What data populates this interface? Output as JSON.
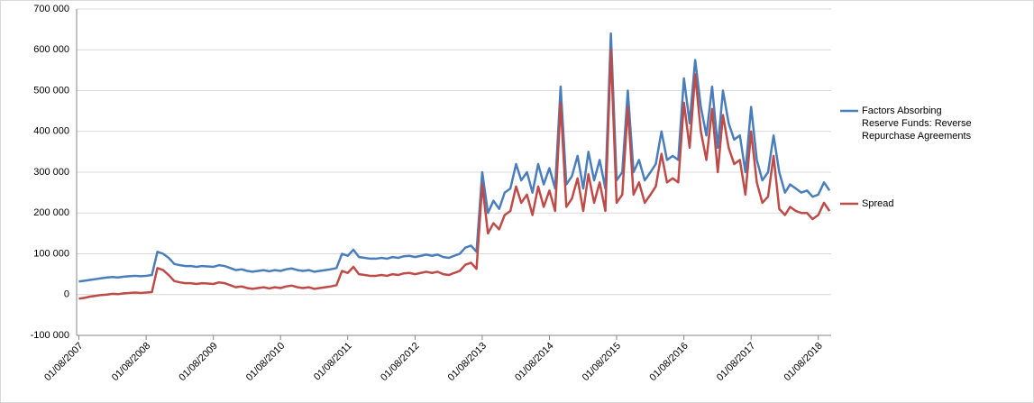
{
  "chart_data": {
    "type": "line",
    "x": [
      "2007-08-01",
      "2007-09-01",
      "2007-10-01",
      "2007-11-01",
      "2007-12-01",
      "2008-01-01",
      "2008-02-01",
      "2008-03-01",
      "2008-04-01",
      "2008-05-01",
      "2008-06-01",
      "2008-07-01",
      "2008-08-01",
      "2008-09-01",
      "2008-10-01",
      "2008-11-01",
      "2008-12-01",
      "2009-01-01",
      "2009-02-01",
      "2009-03-01",
      "2009-04-01",
      "2009-05-01",
      "2009-06-01",
      "2009-07-01",
      "2009-08-01",
      "2009-09-01",
      "2009-10-01",
      "2009-11-01",
      "2009-12-01",
      "2010-01-01",
      "2010-02-01",
      "2010-03-01",
      "2010-04-01",
      "2010-05-01",
      "2010-06-01",
      "2010-07-01",
      "2010-08-01",
      "2010-09-01",
      "2010-10-01",
      "2010-11-01",
      "2010-12-01",
      "2011-01-01",
      "2011-02-01",
      "2011-03-01",
      "2011-04-01",
      "2011-05-01",
      "2011-06-01",
      "2011-07-01",
      "2011-08-01",
      "2011-09-01",
      "2011-10-01",
      "2011-11-01",
      "2011-12-01",
      "2012-01-01",
      "2012-02-01",
      "2012-03-01",
      "2012-04-01",
      "2012-05-01",
      "2012-06-01",
      "2012-07-01",
      "2012-08-01",
      "2012-09-01",
      "2012-10-01",
      "2012-11-01",
      "2012-12-01",
      "2013-01-01",
      "2013-02-01",
      "2013-03-01",
      "2013-04-01",
      "2013-05-01",
      "2013-06-01",
      "2013-07-01",
      "2013-08-01",
      "2013-09-01",
      "2013-10-01",
      "2013-11-01",
      "2013-12-01",
      "2014-01-01",
      "2014-02-01",
      "2014-03-01",
      "2014-04-01",
      "2014-05-01",
      "2014-06-01",
      "2014-07-01",
      "2014-08-01",
      "2014-09-01",
      "2014-10-01",
      "2014-11-01",
      "2014-12-01",
      "2015-01-01",
      "2015-02-01",
      "2015-03-01",
      "2015-04-01",
      "2015-05-01",
      "2015-06-01",
      "2015-07-01",
      "2015-08-01",
      "2015-09-01",
      "2015-10-01",
      "2015-11-01",
      "2015-12-01",
      "2016-01-01",
      "2016-02-01",
      "2016-03-01",
      "2016-04-01",
      "2016-05-01",
      "2016-06-01",
      "2016-07-01",
      "2016-08-01",
      "2016-09-01",
      "2016-10-01",
      "2016-11-01",
      "2016-12-01",
      "2017-01-01",
      "2017-02-01",
      "2017-03-01",
      "2017-04-01",
      "2017-05-01",
      "2017-06-01",
      "2017-07-01",
      "2017-08-01",
      "2017-09-01",
      "2017-10-01",
      "2017-11-01",
      "2017-12-01",
      "2018-01-01",
      "2018-02-01",
      "2018-03-01",
      "2018-04-01",
      "2018-05-01",
      "2018-06-01",
      "2018-07-01",
      "2018-08-01",
      "2018-09-01",
      "2018-10-01"
    ],
    "series": [
      {
        "name": "Factors Absorbing Reserve Funds: Reverse Repurchase Agreements",
        "color": "#4a7ebb",
        "values": [
          32000,
          34000,
          36000,
          38000,
          40000,
          42000,
          43000,
          42000,
          44000,
          45000,
          46000,
          45000,
          46000,
          48000,
          105000,
          100000,
          90000,
          75000,
          72000,
          70000,
          70000,
          68000,
          70000,
          69000,
          68000,
          72000,
          70000,
          65000,
          60000,
          62000,
          58000,
          56000,
          58000,
          60000,
          57000,
          60000,
          58000,
          62000,
          64000,
          60000,
          58000,
          60000,
          56000,
          58000,
          60000,
          62000,
          65000,
          100000,
          95000,
          110000,
          92000,
          90000,
          88000,
          88000,
          90000,
          88000,
          92000,
          90000,
          94000,
          95000,
          92000,
          95000,
          98000,
          95000,
          98000,
          92000,
          90000,
          95000,
          100000,
          115000,
          120000,
          105000,
          300000,
          200000,
          230000,
          210000,
          250000,
          260000,
          320000,
          280000,
          300000,
          250000,
          320000,
          270000,
          310000,
          260000,
          510000,
          270000,
          290000,
          340000,
          260000,
          350000,
          280000,
          330000,
          260000,
          640000,
          280000,
          300000,
          500000,
          300000,
          330000,
          280000,
          300000,
          320000,
          400000,
          330000,
          340000,
          330000,
          530000,
          420000,
          575000,
          460000,
          390000,
          510000,
          360000,
          500000,
          420000,
          380000,
          390000,
          300000,
          460000,
          330000,
          280000,
          300000,
          390000,
          300000,
          250000,
          270000,
          260000,
          250000,
          255000,
          240000,
          245000,
          275000,
          255000
        ]
      },
      {
        "name": "Spread",
        "color": "#be4b48",
        "values": [
          -10000,
          -8000,
          -5000,
          -3000,
          -1000,
          0,
          2000,
          1000,
          3000,
          4000,
          5000,
          4000,
          5000,
          6000,
          65000,
          60000,
          48000,
          33000,
          30000,
          28000,
          28000,
          26000,
          28000,
          27000,
          26000,
          30000,
          28000,
          23000,
          18000,
          20000,
          16000,
          14000,
          16000,
          18000,
          15000,
          18000,
          16000,
          20000,
          22000,
          18000,
          16000,
          18000,
          14000,
          16000,
          18000,
          20000,
          23000,
          58000,
          53000,
          68000,
          50000,
          48000,
          46000,
          46000,
          48000,
          46000,
          50000,
          48000,
          52000,
          53000,
          50000,
          53000,
          56000,
          53000,
          56000,
          50000,
          48000,
          53000,
          58000,
          73000,
          78000,
          63000,
          270000,
          150000,
          175000,
          160000,
          195000,
          205000,
          265000,
          225000,
          245000,
          195000,
          265000,
          215000,
          255000,
          205000,
          470000,
          215000,
          235000,
          285000,
          205000,
          295000,
          225000,
          275000,
          205000,
          600000,
          225000,
          245000,
          460000,
          245000,
          275000,
          225000,
          245000,
          265000,
          345000,
          275000,
          285000,
          275000,
          470000,
          360000,
          540000,
          400000,
          330000,
          455000,
          300000,
          440000,
          360000,
          320000,
          330000,
          245000,
          400000,
          275000,
          225000,
          240000,
          340000,
          210000,
          195000,
          215000,
          205000,
          200000,
          200000,
          185000,
          195000,
          225000,
          205000
        ]
      }
    ],
    "xlim": [
      "2007-07-20",
      "2018-10-10"
    ],
    "xticks": [
      {
        "value": "2007-08-01",
        "label": "01/08/2007"
      },
      {
        "value": "2008-08-01",
        "label": "01/08/2008"
      },
      {
        "value": "2009-08-01",
        "label": "01/08/2009"
      },
      {
        "value": "2010-08-01",
        "label": "01/08/2010"
      },
      {
        "value": "2011-08-01",
        "label": "01/08/2011"
      },
      {
        "value": "2012-08-01",
        "label": "01/08/2012"
      },
      {
        "value": "2013-08-01",
        "label": "01/08/2013"
      },
      {
        "value": "2014-08-01",
        "label": "01/08/2014"
      },
      {
        "value": "2015-08-01",
        "label": "01/08/2015"
      },
      {
        "value": "2016-08-01",
        "label": "01/08/2016"
      },
      {
        "value": "2017-08-01",
        "label": "01/08/2017"
      },
      {
        "value": "2018-08-01",
        "label": "01/08/2018"
      }
    ],
    "ylim": [
      -100000,
      700000
    ],
    "yticks": [
      {
        "value": -100000,
        "label": "-100 000"
      },
      0,
      {
        "value": 100000,
        "label": "100 000"
      },
      {
        "value": 200000,
        "label": "200 000"
      },
      {
        "value": 300000,
        "label": "300 000"
      },
      {
        "value": 400000,
        "label": "400 000"
      },
      {
        "value": 500000,
        "label": "500 000"
      },
      {
        "value": 600000,
        "label": "600 000"
      },
      {
        "value": 700000,
        "label": "700 000"
      }
    ],
    "grid": true,
    "legend": "right"
  }
}
